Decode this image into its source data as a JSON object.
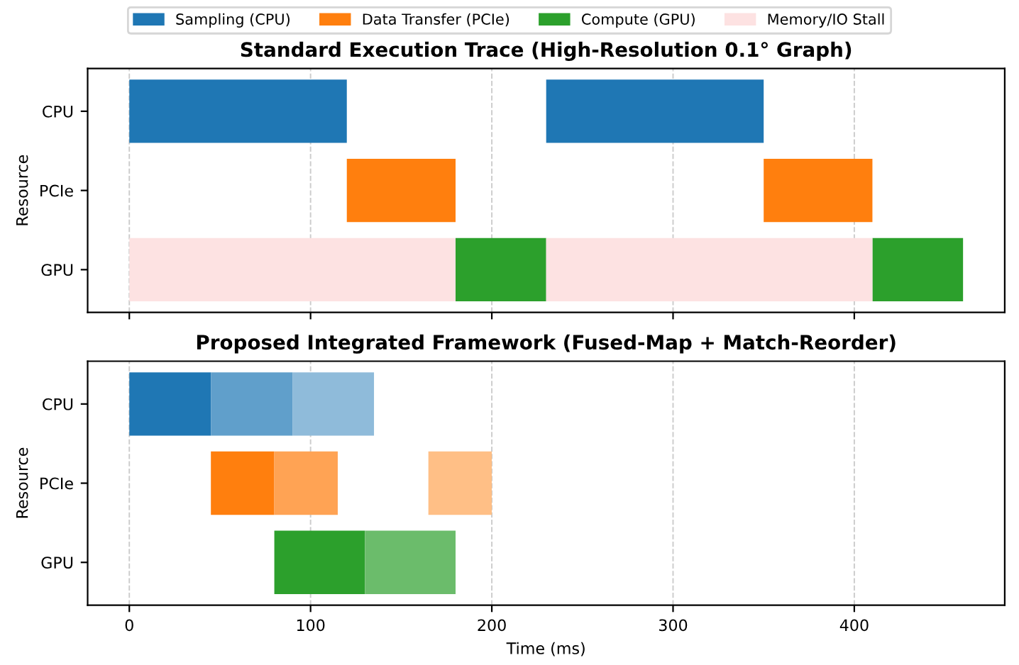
{
  "chart_data": [
    {
      "type": "bar",
      "orientation": "horizontal",
      "title": "Standard Execution Trace (High-Resolution 0.1° Graph)",
      "ylabel": "Resource",
      "categories": [
        "CPU",
        "PCIe",
        "GPU"
      ],
      "xlim": [
        -23,
        483
      ],
      "xticks": [
        0,
        100,
        200,
        300,
        400
      ],
      "tick_labels": "y",
      "grid": "x",
      "legend": "top",
      "series": [
        {
          "name": "Sampling (CPU)",
          "color": "#1f77b4",
          "values": [
            120,
            null,
            null
          ],
          "base": [
            0,
            null,
            null
          ]
        },
        {
          "name": "Data Transfer (PCIe)",
          "color": "#ff7f0e",
          "values": [
            null,
            60,
            null
          ],
          "base": [
            null,
            120,
            null
          ]
        },
        {
          "name": "Compute (GPU)",
          "color": "#2ca02c",
          "values": [
            null,
            null,
            50
          ],
          "base": [
            null,
            null,
            180
          ]
        },
        {
          "name": "Memory/IO Stall",
          "color": "#fde2e2",
          "values": [
            null,
            null,
            180
          ],
          "base": [
            null,
            null,
            0
          ]
        },
        {
          "color": "#1f77b4",
          "values": [
            120,
            null,
            null
          ],
          "base": [
            230,
            null,
            null
          ]
        },
        {
          "color": "#ff7f0e",
          "values": [
            null,
            60,
            null
          ],
          "base": [
            null,
            350,
            null
          ]
        },
        {
          "color": "#2ca02c",
          "values": [
            null,
            null,
            50
          ],
          "base": [
            null,
            null,
            410
          ]
        },
        {
          "color": "#fde2e2",
          "values": [
            null,
            null,
            180
          ],
          "base": [
            null,
            null,
            230
          ]
        }
      ]
    },
    {
      "type": "bar",
      "orientation": "horizontal",
      "title": "Proposed Integrated Framework (Fused-Map + Match-Reorder)",
      "xlabel": "Time (ms)",
      "ylabel": "Resource",
      "categories": [
        "CPU",
        "PCIe",
        "GPU"
      ],
      "xlim": [
        -23,
        483
      ],
      "xticks": [
        0,
        100,
        200,
        300,
        400
      ],
      "grid": "x",
      "series": [
        {
          "color": "#1f77b4",
          "values": [
            45,
            null,
            null
          ],
          "base": [
            0,
            null,
            null
          ]
        },
        {
          "color": "#609fcb",
          "values": [
            45,
            null,
            null
          ],
          "base": [
            45,
            null,
            null
          ]
        },
        {
          "color": "#8fbbda",
          "values": [
            45,
            null,
            null
          ],
          "base": [
            90,
            null,
            null
          ]
        },
        {
          "color": "#ff7f0e",
          "values": [
            null,
            35,
            null
          ],
          "base": [
            null,
            45,
            null
          ]
        },
        {
          "color": "#ffa354",
          "values": [
            null,
            35,
            null
          ],
          "base": [
            null,
            80,
            null
          ]
        },
        {
          "color": "#ffbf86",
          "values": [
            null,
            35,
            null
          ],
          "base": [
            null,
            165,
            null
          ]
        },
        {
          "color": "#2ca02c",
          "values": [
            null,
            null,
            50
          ],
          "base": [
            null,
            null,
            80
          ]
        },
        {
          "color": "#6bbc6b",
          "values": [
            null,
            null,
            50
          ],
          "base": [
            null,
            null,
            130
          ]
        }
      ]
    }
  ]
}
